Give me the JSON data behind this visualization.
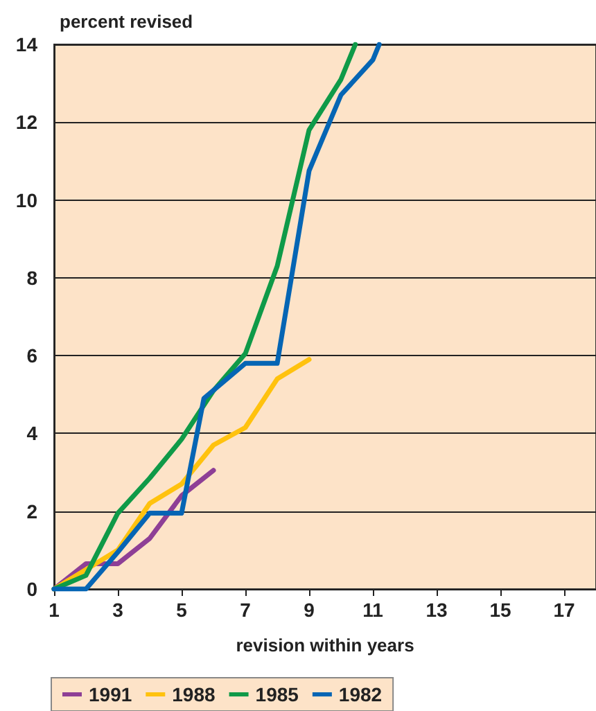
{
  "chart_data": {
    "type": "line",
    "ylabel": "percent revised",
    "xlabel": "revision within years",
    "xlim": [
      1,
      18
    ],
    "xticks": [
      1,
      3,
      5,
      7,
      9,
      11,
      13,
      15,
      17
    ],
    "ylim": [
      0,
      14
    ],
    "yticks": [
      0,
      2,
      4,
      6,
      8,
      10,
      12,
      14
    ],
    "grid": "y",
    "legend": "bottom",
    "marker": "none",
    "line_style": "solid",
    "series": [
      {
        "name": "1991",
        "color": "#8e3f96",
        "x": [
          1,
          2,
          3,
          4,
          5,
          6
        ],
        "values": [
          0,
          0.65,
          0.65,
          1.3,
          2.4,
          3.05
        ]
      },
      {
        "name": "1988",
        "color": "#ffc20e",
        "x": [
          1,
          2,
          3,
          4,
          5,
          6,
          7,
          8,
          9
        ],
        "values": [
          0,
          0.5,
          1.0,
          2.2,
          2.7,
          3.7,
          4.15,
          5.4,
          5.9
        ]
      },
      {
        "name": "1985",
        "color": "#0f9a48",
        "x": [
          1,
          2,
          3,
          4,
          5,
          6,
          7,
          8,
          9,
          10,
          10.45
        ],
        "values": [
          0,
          0.35,
          1.95,
          2.85,
          3.85,
          5.1,
          6.05,
          8.3,
          11.8,
          13.1,
          14
        ]
      },
      {
        "name": "1982",
        "color": "#0565b4",
        "x": [
          1,
          2,
          3,
          4,
          5,
          5.7,
          7,
          8,
          9,
          10,
          11,
          11.2
        ],
        "values": [
          0,
          0,
          0.95,
          1.95,
          1.95,
          4.9,
          5.8,
          5.8,
          10.75,
          12.7,
          13.6,
          14
        ]
      }
    ]
  }
}
